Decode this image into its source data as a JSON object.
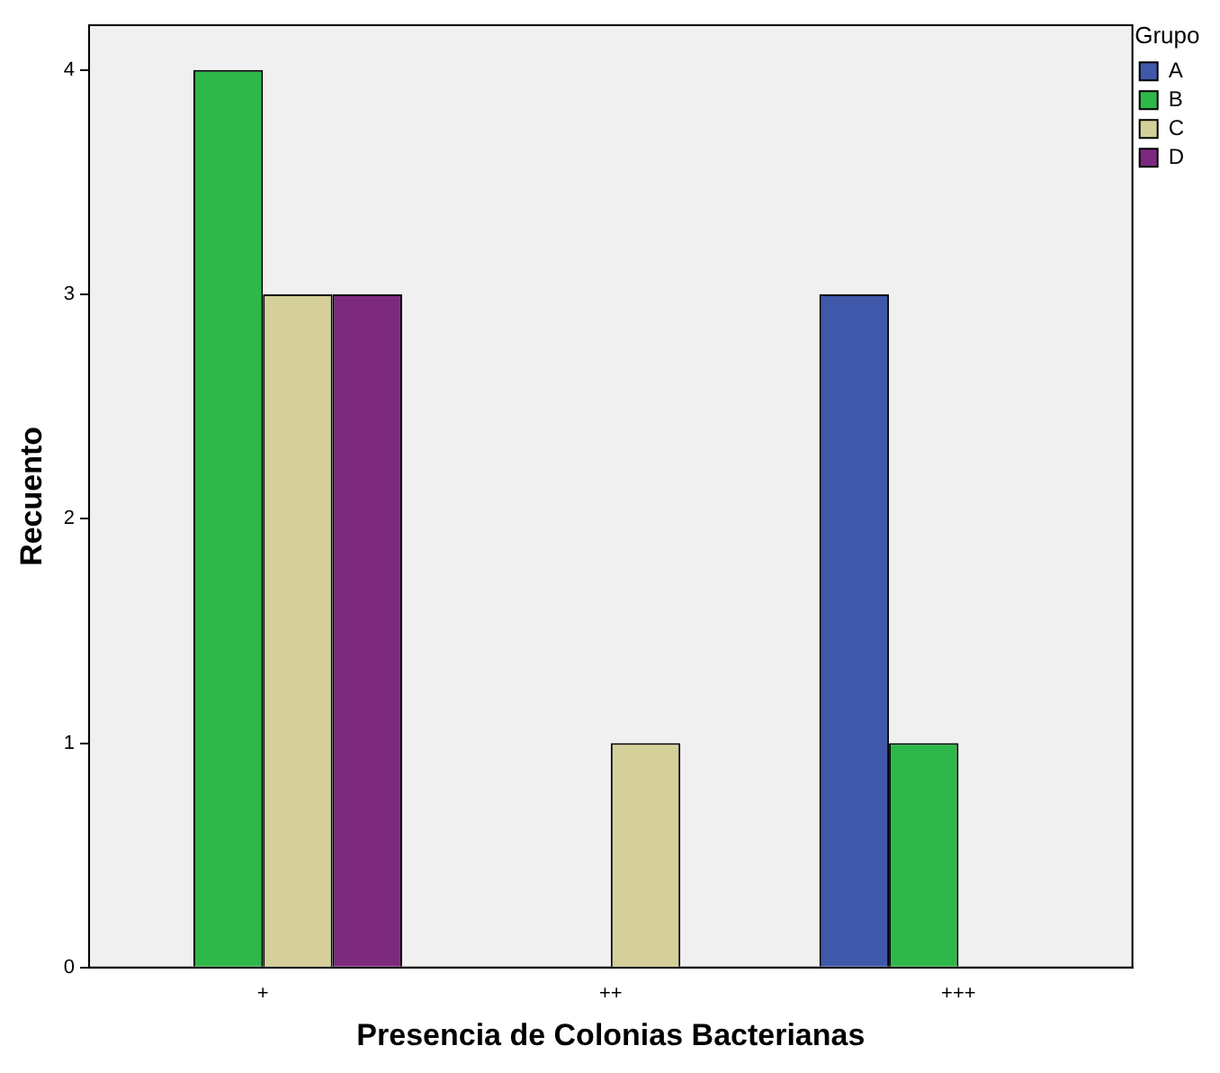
{
  "chart_data": {
    "type": "bar",
    "xlabel": "Presencia de Colonias Bacterianas",
    "ylabel": "Recuento",
    "legend_title": "Grupo",
    "categories": [
      "+",
      "++",
      "+++"
    ],
    "series": [
      {
        "name": "A",
        "color": "#3f58aa",
        "values": [
          0,
          0,
          3
        ]
      },
      {
        "name": "B",
        "color": "#2fb84a",
        "values": [
          4,
          0,
          1
        ]
      },
      {
        "name": "C",
        "color": "#d5d09a",
        "values": [
          3,
          1,
          0
        ]
      },
      {
        "name": "D",
        "color": "#7d2a7e",
        "values": [
          3,
          0,
          0
        ]
      }
    ],
    "ylim": [
      0,
      4.2
    ],
    "yticks": [
      0,
      1,
      2,
      3,
      4
    ],
    "grid": false,
    "legend": "top right"
  }
}
